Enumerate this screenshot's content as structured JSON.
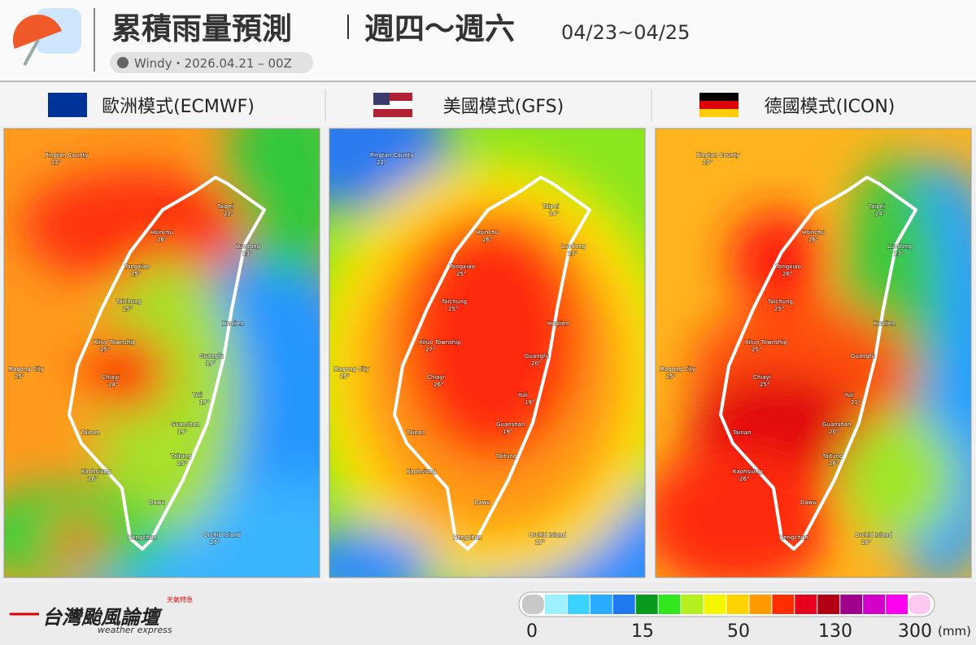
{
  "header": {
    "title": "累積雨量預測",
    "period": "週四～週六",
    "dates": "04/23~04/25",
    "source": "Windy・2026.04.21 – 00Z"
  },
  "panels": [
    {
      "label": "歐洲模式(ECMWF)",
      "temps": [
        "22°",
        "22°",
        "26°",
        "23°",
        "25°",
        "25°",
        null,
        "25°",
        "19°",
        "25°",
        "24°",
        "19°",
        "19°",
        null,
        "25°",
        "26°",
        null,
        null,
        "27°"
      ]
    },
    {
      "label": "美國模式(GFS)",
      "temps": [
        "22°",
        "24°",
        "26°",
        "23°",
        "25°",
        "25°",
        null,
        "27°",
        "20°",
        "25°",
        "26°",
        "19°",
        "19°",
        null,
        null,
        null,
        null,
        null,
        "27°"
      ]
    },
    {
      "label": "德國模式(ICON)",
      "temps": [
        "23°",
        "24°",
        "26°",
        "23°",
        "26°",
        "25°",
        null,
        "25°",
        null,
        "25°",
        "25°",
        "21°",
        "20°",
        null,
        "26°",
        "26°",
        null,
        null,
        "28°"
      ]
    }
  ],
  "cities": [
    "Pingtan County",
    "Taipei",
    "Hsinchu",
    "Luodong",
    "Tongxiao",
    "Taichung",
    "Hualien",
    "Xiluo Township",
    "Guangfu",
    "Magong City",
    "Chiayi",
    "Yuli",
    "Guanshan",
    "Tainan",
    "Taitung",
    "Kaohsiung",
    "Dawu",
    "Hengchun",
    "Orchid Island"
  ],
  "footer": {
    "logo": "台灣颱風論壇",
    "logo_sub": "weather express",
    "badge": "天氣特急"
  },
  "legend": {
    "colors": [
      "#c8c8c8",
      "#9ef0ff",
      "#3cd2ff",
      "#28aaff",
      "#1e78f0",
      "#0a9a1e",
      "#32e61e",
      "#b4f01e",
      "#f5f500",
      "#ffd200",
      "#ff9b00",
      "#ff2d00",
      "#e6001e",
      "#b40014",
      "#a0008c",
      "#d200c8",
      "#ff00f0",
      "#ffc8f0"
    ],
    "ticks": [
      "0",
      "15",
      "50",
      "130",
      "300"
    ],
    "unit": "(mm)"
  }
}
